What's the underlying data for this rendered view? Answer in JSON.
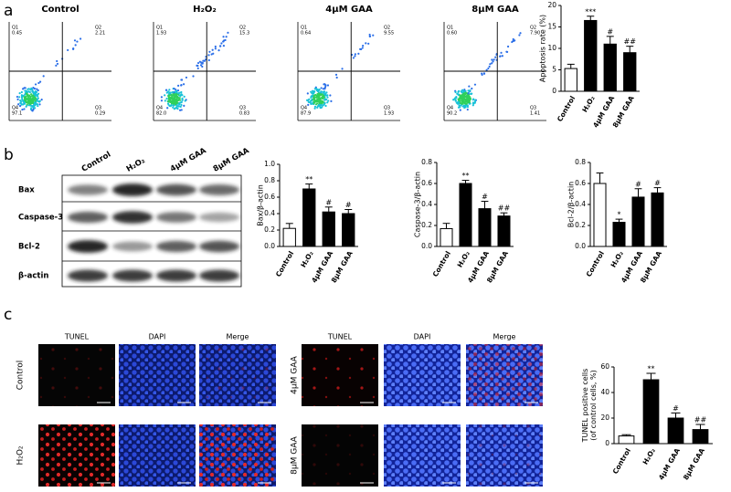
{
  "figure": {
    "panel_labels": [
      "a",
      "b",
      "c"
    ],
    "flow": {
      "titles": [
        "Control",
        "H₂O₂",
        "4μM GAA",
        "8μM GAA"
      ],
      "quadrant_names": [
        "Q1",
        "Q2",
        "Q3",
        "Q4"
      ],
      "quadrants": [
        [
          "0.45",
          "2.21",
          "0.29",
          "97.1"
        ],
        [
          "1.93",
          "15.3",
          "0.83",
          "82.0"
        ],
        [
          "0.64",
          "9.55",
          "1.93",
          "87.9"
        ],
        [
          "0.60",
          "7.90",
          "1.41",
          "90.2"
        ]
      ]
    },
    "blot": {
      "lanes": [
        "Control",
        "H₂O₂",
        "4μM GAA",
        "8μM GAA"
      ],
      "rows": [
        "Bax",
        "Caspase-3",
        "Bcl-2",
        "β-actin"
      ]
    },
    "tunel": {
      "columns": [
        "TUNEL",
        "DAPI",
        "Merge",
        "TUNEL",
        "DAPI",
        "Merge"
      ],
      "rows_left": [
        "Control",
        "H₂O₂"
      ],
      "rows_right": [
        "4μM GAA",
        "8μM GAA"
      ]
    }
  },
  "chart_data": [
    {
      "type": "bar",
      "y_label": [
        "Apoptosis rate (%)"
      ],
      "categories": [
        "Control",
        "H₂O₂",
        "4μM GAA",
        "8μM GAA"
      ],
      "values": [
        5.3,
        16.5,
        11,
        9
      ],
      "errors": [
        1,
        1,
        1.8,
        1.5
      ],
      "annotations": [
        null,
        "***",
        "#",
        "##"
      ],
      "colors": [
        "#ffffff",
        "#000000",
        "#000000",
        "#000000"
      ],
      "ylim": [
        0,
        20
      ],
      "yticks": [
        0,
        5,
        10,
        15,
        20
      ]
    },
    {
      "type": "bar",
      "y_label": [
        "Bax/β-actin"
      ],
      "categories": [
        "Control",
        "H₂O₂",
        "4μM GAA",
        "8μM GAA"
      ],
      "values": [
        0.22,
        0.7,
        0.42,
        0.4
      ],
      "errors": [
        0.06,
        0.06,
        0.06,
        0.05
      ],
      "annotations": [
        null,
        "**",
        "#",
        "#"
      ],
      "colors": [
        "#ffffff",
        "#000000",
        "#000000",
        "#000000"
      ],
      "ylim": [
        0,
        1
      ],
      "yticks": [
        {
          "value": 0,
          "label": "0.0"
        },
        0.2,
        0.4,
        0.6,
        0.8,
        {
          "value": 1,
          "label": "1.0"
        }
      ]
    },
    {
      "type": "bar",
      "y_label": [
        "Caspase-3/β-actin"
      ],
      "categories": [
        "Control",
        "H₂O₂",
        "4μM GAA",
        "8μM GAA"
      ],
      "values": [
        0.17,
        0.6,
        0.36,
        0.29
      ],
      "errors": [
        0.05,
        0.03,
        0.07,
        0.03
      ],
      "annotations": [
        null,
        "**",
        "#",
        "##"
      ],
      "colors": [
        "#ffffff",
        "#000000",
        "#000000",
        "#000000"
      ],
      "ylim": [
        0,
        0.8
      ],
      "yticks": [
        {
          "value": 0,
          "label": "0.0"
        },
        0.2,
        0.4,
        0.6,
        0.8
      ]
    },
    {
      "type": "bar",
      "y_label": [
        "Bcl-2/β-actin"
      ],
      "categories": [
        "Control",
        "H₂O₂",
        "4μM GAA",
        "8μM GAA"
      ],
      "values": [
        0.6,
        0.23,
        0.47,
        0.51
      ],
      "errors": [
        0.1,
        0.03,
        0.08,
        0.05
      ],
      "annotations": [
        null,
        "*",
        "#",
        "#"
      ],
      "colors": [
        "#ffffff",
        "#000000",
        "#000000",
        "#000000"
      ],
      "ylim": [
        0,
        0.8
      ],
      "yticks": [
        {
          "value": 0,
          "label": "0.0"
        },
        0.2,
        0.4,
        0.6,
        0.8
      ]
    },
    {
      "type": "bar",
      "y_label": [
        "TUNEL positive cells",
        "(of control cells, %)"
      ],
      "categories": [
        "Control",
        "H₂O₂",
        "4μM GAA",
        "8μM GAA"
      ],
      "values": [
        6,
        50,
        20,
        11
      ],
      "errors": [
        1,
        5,
        4,
        4
      ],
      "annotations": [
        null,
        "**",
        "#",
        "##"
      ],
      "colors": [
        "#ffffff",
        "#000000",
        "#000000",
        "#000000"
      ],
      "ylim": [
        0,
        60
      ],
      "yticks": [
        0,
        20,
        40,
        60
      ]
    }
  ]
}
